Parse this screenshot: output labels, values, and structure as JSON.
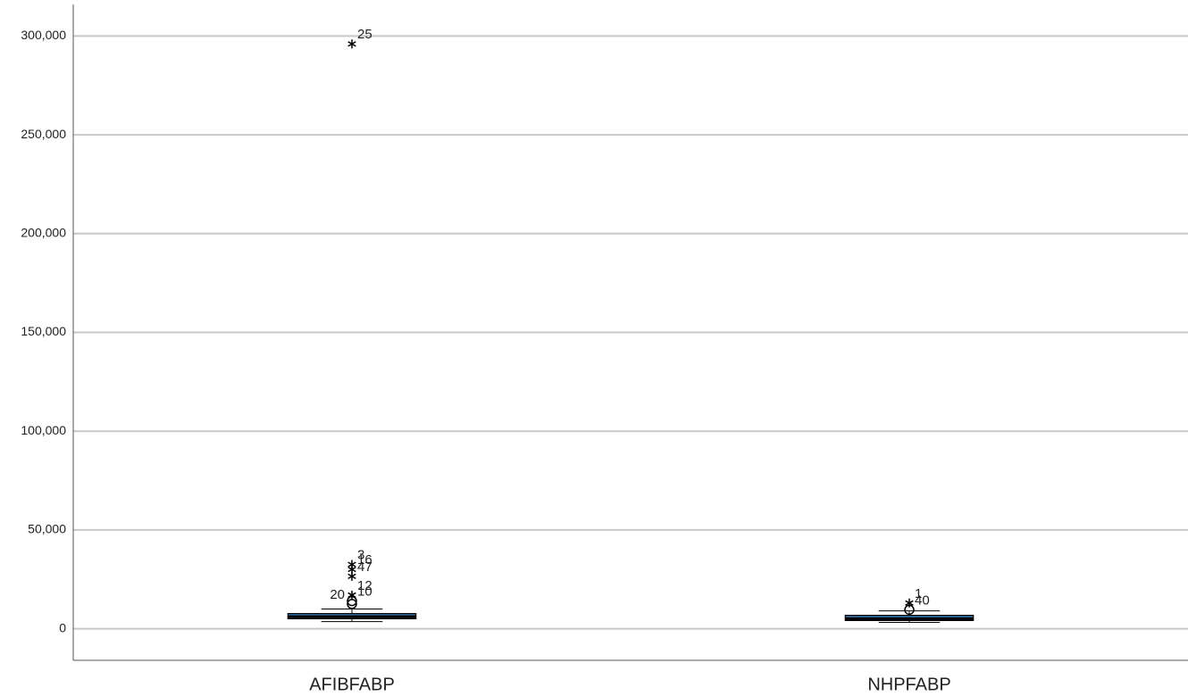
{
  "chart_data": {
    "type": "box",
    "categories": [
      "AFIBFABP",
      "NHPFABP"
    ],
    "boxes": [
      {
        "min": 3600,
        "q1": 5000,
        "median": 6000,
        "q3": 7700,
        "max": 10000,
        "outliers": [
          {
            "label": "25",
            "value": 296000,
            "marker": "star"
          },
          {
            "label": "3",
            "value": 32500,
            "marker": "star"
          },
          {
            "label": "16",
            "value": 30000,
            "marker": "star"
          },
          {
            "label": "47",
            "value": 26500,
            "marker": "star"
          },
          {
            "label": "12",
            "value": 17000,
            "marker": "star"
          },
          {
            "label": "10",
            "value": 14000,
            "marker": "circle"
          },
          {
            "label": "20",
            "value": 12500,
            "marker": "circle"
          }
        ]
      },
      {
        "min": 3200,
        "q1": 4100,
        "median": 5000,
        "q3": 6800,
        "max": 9000,
        "outliers": [
          {
            "label": "1",
            "value": 13000,
            "marker": "star"
          },
          {
            "label": "40",
            "value": 9600,
            "marker": "circle"
          }
        ]
      }
    ],
    "color": "#2b5f8c",
    "ylim": [
      -16000,
      316000
    ],
    "yticks": [
      0,
      {
        "value": 50000,
        "label": "50,000"
      },
      {
        "value": 100000,
        "label": "100,000"
      },
      {
        "value": 150000,
        "label": "150,000"
      },
      {
        "value": 200000,
        "label": "200,000"
      },
      {
        "value": 250000,
        "label": "250,000"
      },
      {
        "value": 300000,
        "label": "300,000"
      }
    ],
    "grid": true
  }
}
